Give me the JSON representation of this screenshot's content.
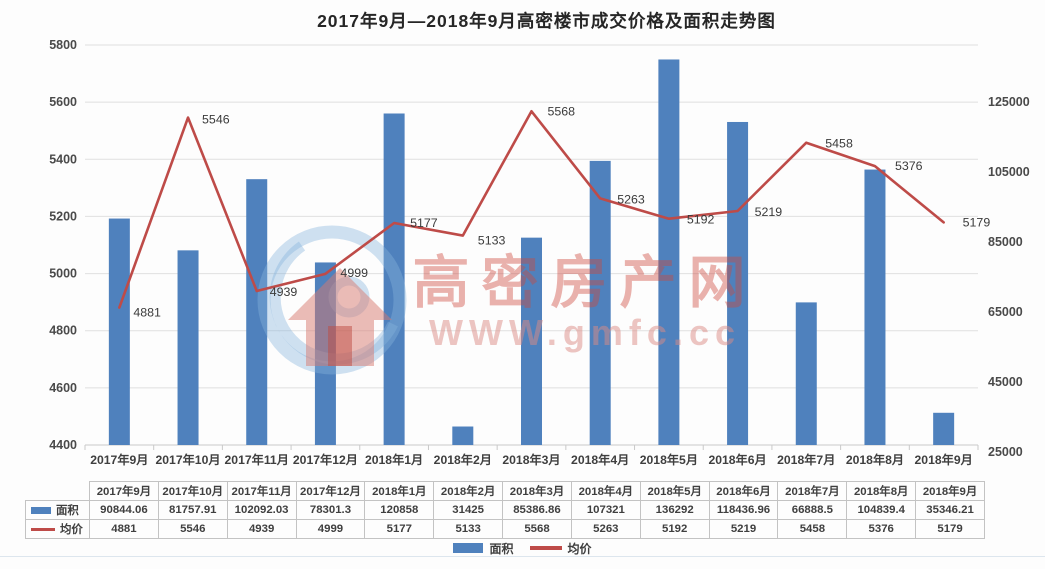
{
  "title": "2017年9月—2018年9月高密楼市成交价格及面积走势图",
  "watermark": {
    "brand": "高密房产网",
    "site": "WWW.gmfc.cc"
  },
  "colors": {
    "bar": "#4F81BD",
    "line": "#BE4B48",
    "grid": "#e0e0e0",
    "axis_line": "#c9c9c9",
    "axis_text": "#4a4a4a",
    "label_text": "#3b3b3b",
    "watermark_red": "rgba(205,72,60,0.42)",
    "watermark_pink": "rgba(219,139,133,0.5)",
    "watermark_blue": "rgba(134,180,220,0.4)",
    "watermark_house": "rgba(216,122,112,0.5)",
    "watermark_door": "rgba(190,75,65,0.5)"
  },
  "legend": {
    "items": [
      {
        "label": "面积",
        "type": "bar"
      },
      {
        "label": "均价",
        "type": "line"
      }
    ]
  },
  "chart_data": {
    "type": "bar+line combo, dual axis",
    "title": "2017年9月—2018年9月高密楼市成交价格及面积走势图",
    "categories": [
      "2017年9月",
      "2017年10月",
      "2017年11月",
      "2017年12月",
      "2018年1月",
      "2018年2月",
      "2018年3月",
      "2018年4月",
      "2018年5月",
      "2018年6月",
      "2018年7月",
      "2018年8月",
      "2018年9月"
    ],
    "series": [
      {
        "name": "面积",
        "chart_type": "bar",
        "axis": "right",
        "values": [
          90844.06,
          81757.91,
          102092.03,
          78301.3,
          120858,
          31425,
          85386.86,
          107321,
          136292,
          118436.96,
          66888.5,
          104839.4,
          35346.21
        ]
      },
      {
        "name": "均价",
        "chart_type": "line",
        "axis": "left",
        "point_labels_visible": true,
        "values": [
          4881,
          5546,
          4939,
          4999,
          5177,
          5133,
          5568,
          5263,
          5192,
          5219,
          5458,
          5376,
          5179
        ]
      }
    ],
    "left_axis": {
      "min": 4400,
      "max": 5800,
      "step": 200,
      "ticks": [
        5800,
        5600,
        5400,
        5200,
        5000,
        4800,
        4600,
        4400
      ]
    },
    "right_axis": {
      "min": 25000,
      "step": 20000,
      "ticks": [
        125000,
        105000,
        85000,
        65000,
        45000,
        25000
      ]
    },
    "grid": "horizontal only",
    "legend_position": "bottom"
  },
  "table": {
    "corner": "",
    "header": [
      "2017年9月",
      "2017年10月",
      "2017年11月",
      "2017年12月",
      "2018年1月",
      "2018年2月",
      "2018年3月",
      "2018年4月",
      "2018年5月",
      "2018年6月",
      "2018年7月",
      "2018年8月",
      "2018年9月"
    ],
    "rows": [
      {
        "label": "面积",
        "swatch": "bar",
        "values": [
          "90844.06",
          "81757.91",
          "102092.03",
          "78301.3",
          "120858",
          "31425",
          "85386.86",
          "107321",
          "136292",
          "118436.96",
          "66888.5",
          "104839.4",
          "35346.21"
        ]
      },
      {
        "label": "均价",
        "swatch": "line",
        "values": [
          "4881",
          "5546",
          "4939",
          "4999",
          "5177",
          "5133",
          "5568",
          "5263",
          "5192",
          "5219",
          "5458",
          "5376",
          "5179"
        ]
      }
    ]
  }
}
